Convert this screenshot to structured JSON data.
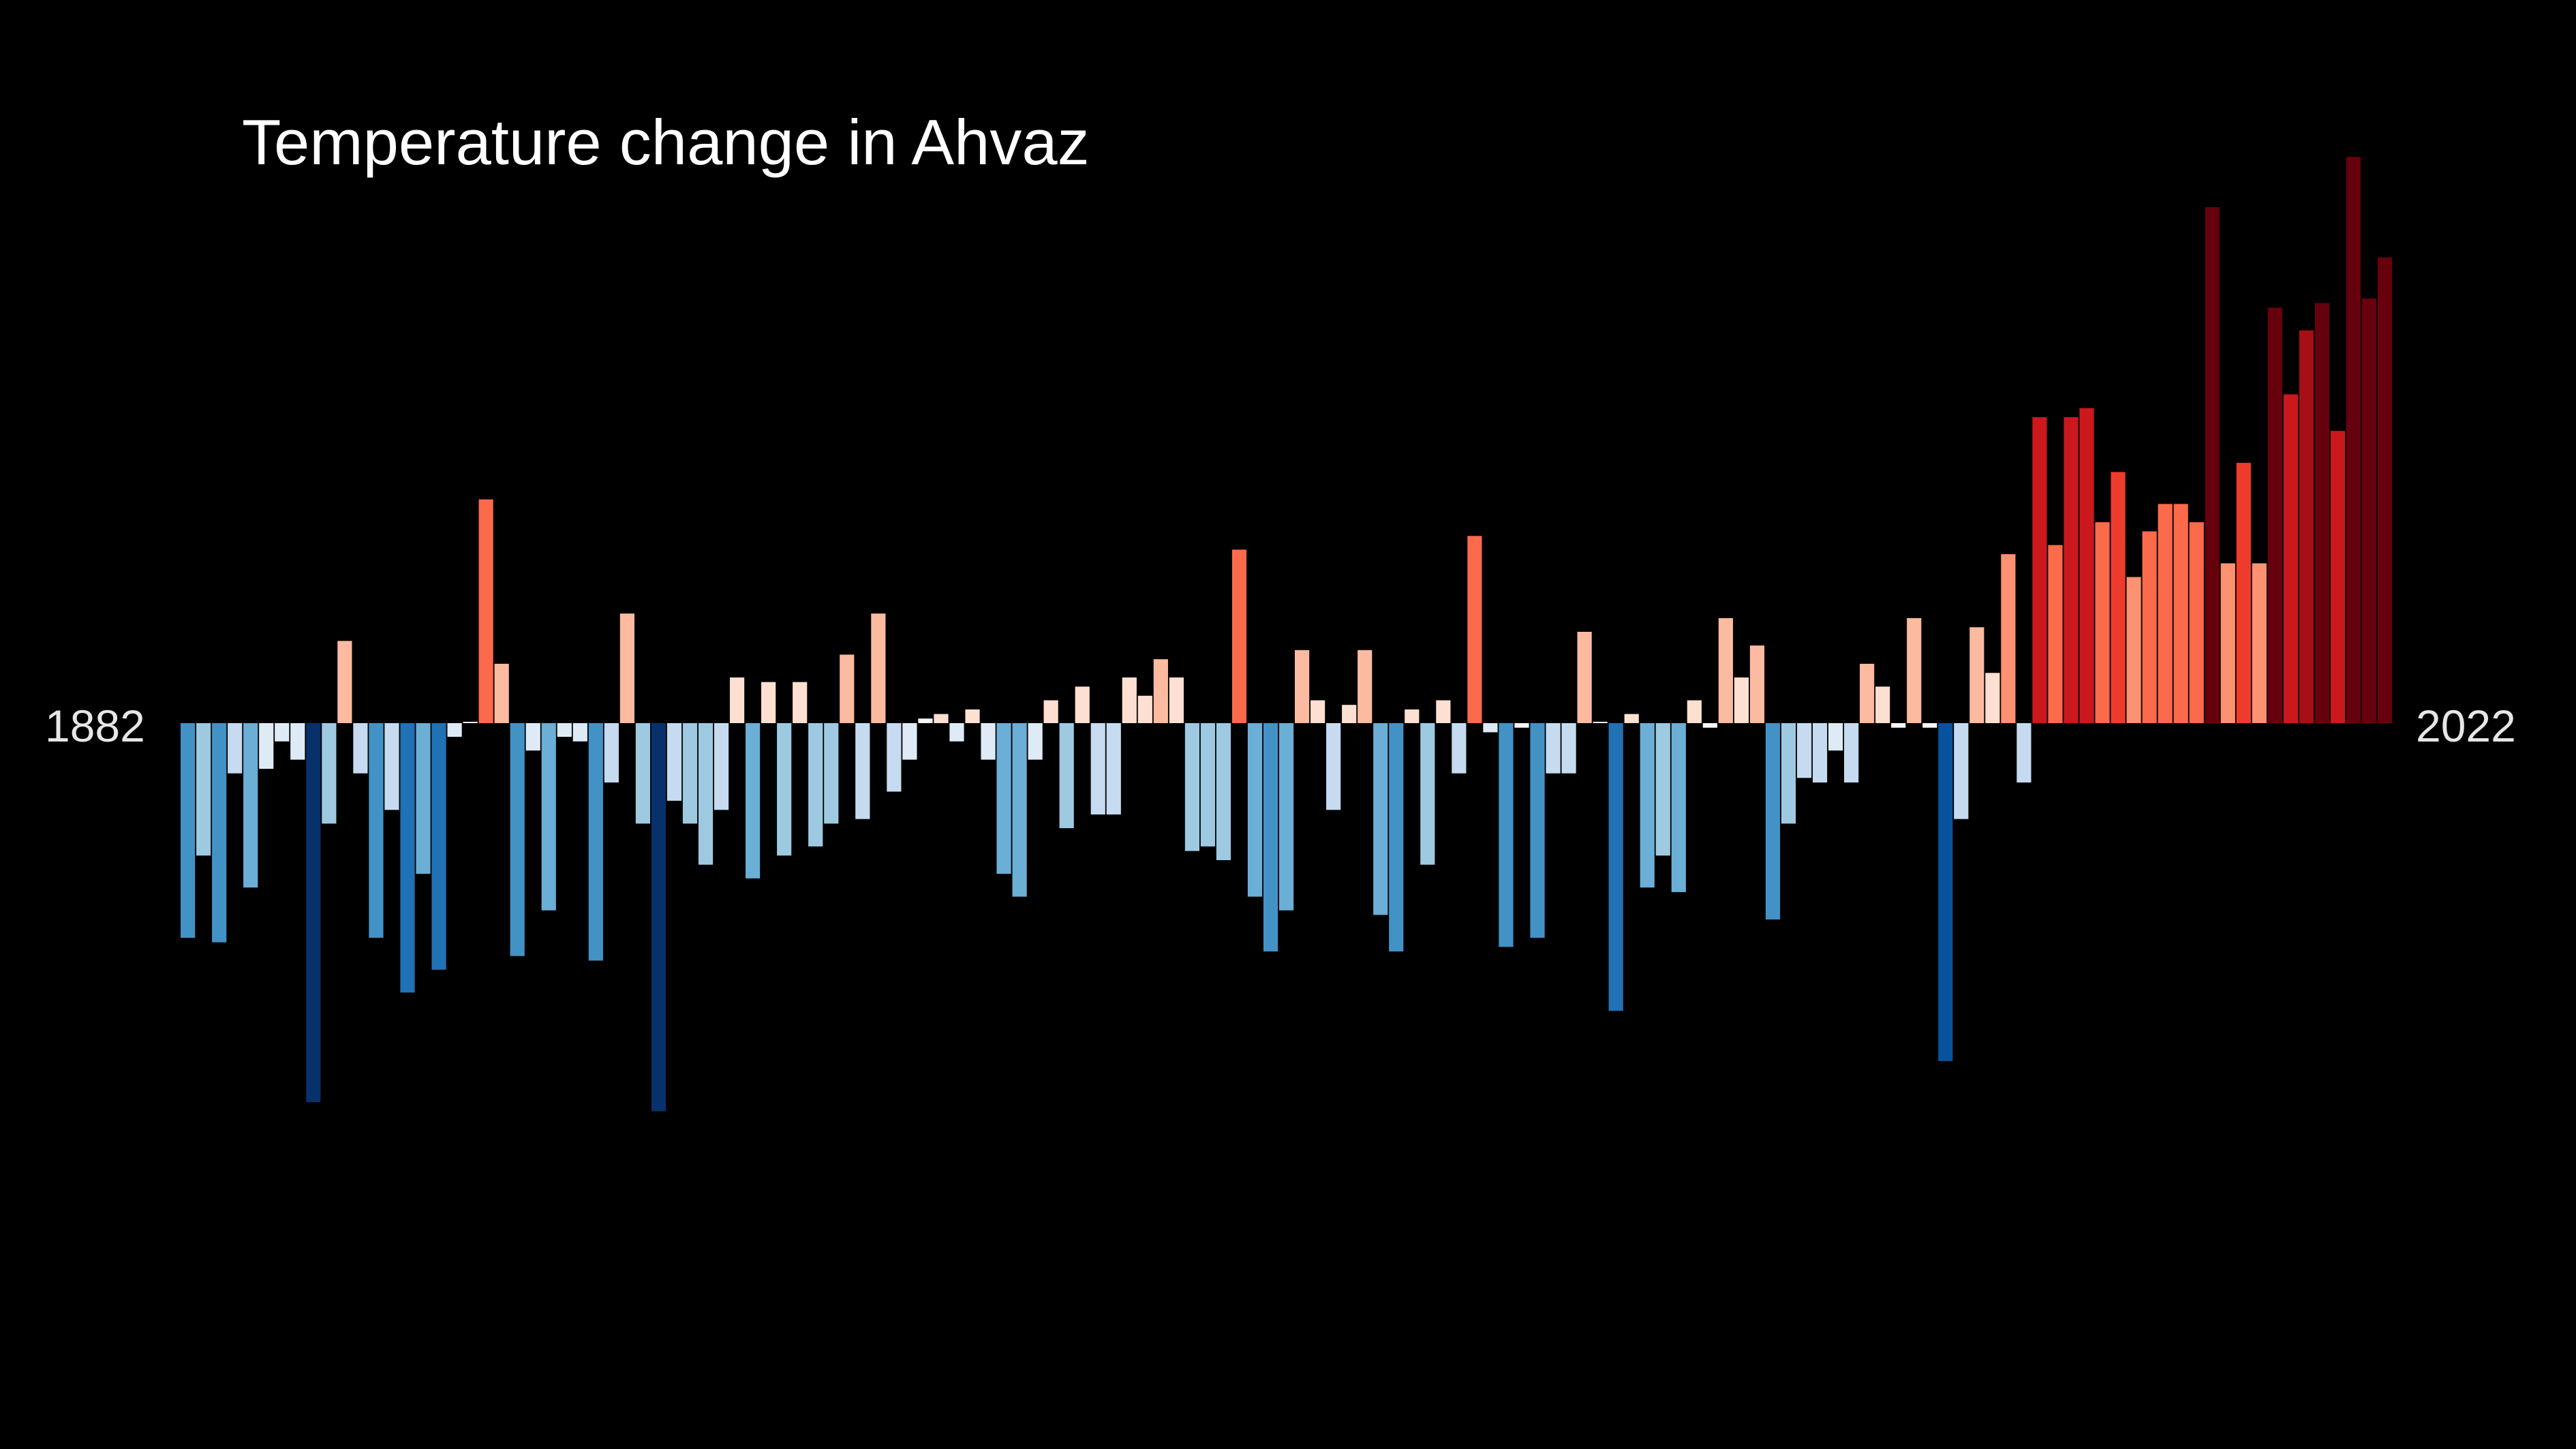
{
  "chart_data": {
    "type": "bar",
    "title": "Temperature change in Ahvaz",
    "start_label": "1882",
    "end_label": "2022",
    "x_start": 1882,
    "x_end": 2022,
    "ylim": [
      -0.85,
      1.25
    ],
    "grid": false,
    "legend": "none",
    "series": [
      {
        "values": [
          -0.47,
          -0.29,
          -0.48,
          -0.11,
          -0.36,
          -0.1,
          -0.04,
          -0.08,
          -0.83,
          -0.22,
          0.18,
          -0.11,
          -0.47,
          -0.19,
          -0.59,
          -0.33,
          -0.54,
          -0.03,
          0.0,
          0.49,
          0.13,
          -0.51,
          -0.06,
          -0.41,
          -0.03,
          -0.04,
          -0.52,
          -0.13,
          0.24,
          -0.22,
          -0.85,
          -0.17,
          -0.22,
          -0.31,
          -0.19,
          0.1,
          -0.34,
          0.09,
          -0.29,
          0.09,
          -0.27,
          -0.22,
          0.15,
          -0.21,
          0.24,
          -0.15,
          -0.08,
          0.01,
          0.02,
          -0.04,
          0.03,
          -0.08,
          -0.33,
          -0.38,
          -0.08,
          0.05,
          -0.23,
          0.08,
          -0.2,
          -0.2,
          0.1,
          0.06,
          0.14,
          0.1,
          -0.28,
          -0.27,
          -0.3,
          0.38,
          -0.38,
          -0.5,
          -0.41,
          0.16,
          0.05,
          -0.19,
          0.04,
          0.16,
          -0.42,
          -0.5,
          0.03,
          -0.31,
          0.05,
          -0.11,
          0.41,
          -0.02,
          -0.49,
          -0.01,
          -0.47,
          -0.11,
          -0.11,
          0.2,
          -0.0,
          -0.63,
          0.02,
          -0.36,
          -0.29,
          -0.37,
          0.05,
          -0.01,
          0.23,
          0.1,
          0.17,
          -0.43,
          -0.22,
          -0.12,
          -0.13,
          -0.06,
          -0.13,
          0.13,
          0.08,
          -0.01,
          0.23,
          -0.01,
          -0.74,
          -0.21,
          0.21,
          0.11,
          0.37,
          -0.13,
          0.67,
          0.39,
          0.67,
          0.69,
          0.44,
          0.55,
          0.32,
          0.42,
          0.48,
          0.48,
          0.44,
          1.13,
          0.35,
          0.57,
          0.35,
          0.91,
          0.72,
          0.86,
          0.92,
          0.64,
          1.24,
          0.93,
          1.02
        ]
      }
    ]
  },
  "colors": {
    "background": "#000000",
    "title": "#ffffff",
    "labels": "#e6e6e6"
  }
}
